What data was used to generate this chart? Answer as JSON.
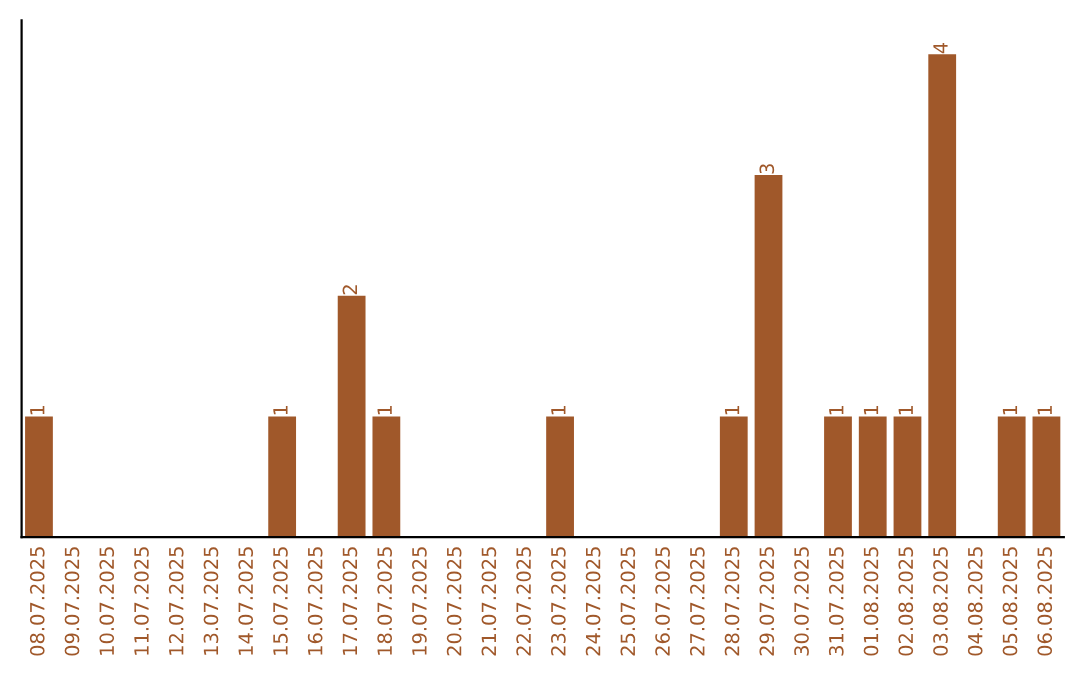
{
  "chart_data": {
    "type": "bar",
    "categories": [
      "08.07.2025",
      "09.07.2025",
      "10.07.2025",
      "11.07.2025",
      "12.07.2025",
      "13.07.2025",
      "14.07.2025",
      "15.07.2025",
      "16.07.2025",
      "17.07.2025",
      "18.07.2025",
      "19.07.2025",
      "20.07.2025",
      "21.07.2025",
      "22.07.2025",
      "23.07.2025",
      "24.07.2025",
      "25.07.2025",
      "26.07.2025",
      "27.07.2025",
      "28.07.2025",
      "29.07.2025",
      "30.07.2025",
      "31.07.2025",
      "01.08.2025",
      "02.08.2025",
      "03.08.2025",
      "04.08.2025",
      "05.08.2025",
      "06.08.2025"
    ],
    "values": [
      1,
      0,
      0,
      0,
      0,
      0,
      0,
      1,
      0,
      2,
      1,
      0,
      0,
      0,
      0,
      1,
      0,
      0,
      0,
      0,
      1,
      3,
      0,
      1,
      1,
      1,
      4,
      0,
      1,
      1
    ],
    "value_labels": [
      "1",
      null,
      null,
      null,
      null,
      null,
      null,
      "1",
      null,
      "2",
      "1",
      null,
      null,
      null,
      null,
      "1",
      null,
      null,
      null,
      null,
      "1",
      "3",
      null,
      "1",
      "1",
      "1",
      "4",
      null,
      "1",
      "1"
    ],
    "color": "#a0582a",
    "tick_labels": "x",
    "grid": false,
    "legend": false
  }
}
